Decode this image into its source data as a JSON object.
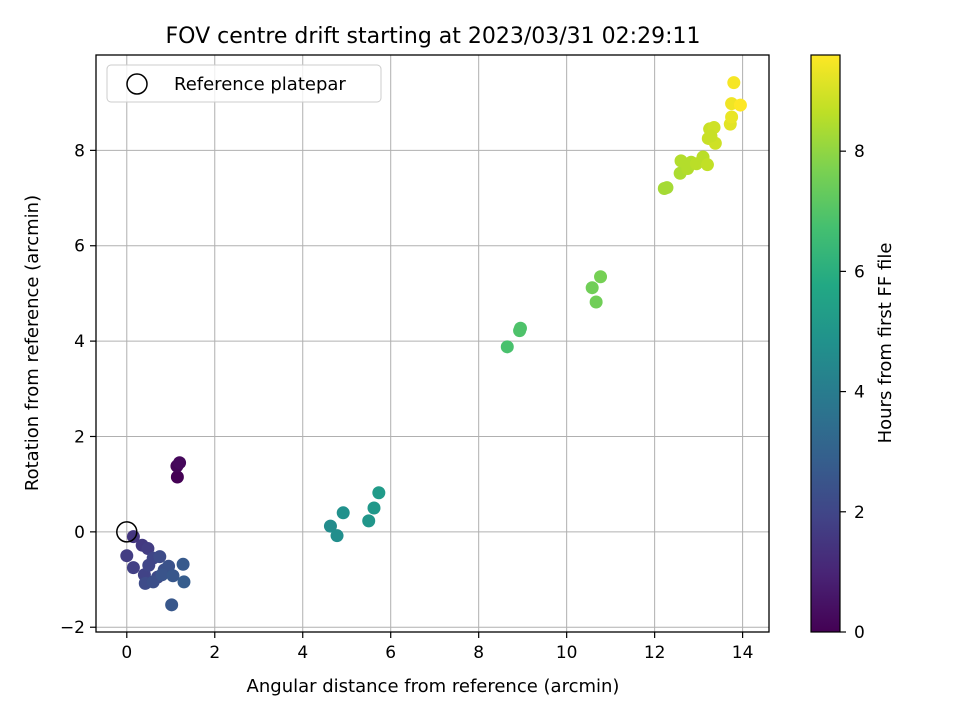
{
  "chart_data": {
    "type": "scatter",
    "title": "FOV centre drift starting at 2023/03/31 02:29:11",
    "xlabel": "Angular distance from reference (arcmin)",
    "ylabel": "Rotation from reference (arcmin)",
    "xlim": [
      -0.7,
      14.6
    ],
    "ylim": [
      -2.1,
      10.0
    ],
    "xticks": [
      0,
      2,
      4,
      6,
      8,
      10,
      12,
      14
    ],
    "yticks": [
      -2,
      0,
      2,
      4,
      6,
      8
    ],
    "grid": true,
    "legend": {
      "placement": "top-left",
      "entries": [
        "Reference platepar"
      ]
    },
    "reference_point": {
      "x": 0,
      "y": 0,
      "marker": "open-circle",
      "label": "Reference platepar"
    },
    "colorbar": {
      "label": "Hours from first FF file",
      "colormap": "viridis",
      "range": [
        0,
        9.6
      ],
      "ticks": [
        0,
        2,
        4,
        6,
        8
      ]
    },
    "points": [
      {
        "x": 1.15,
        "y": 1.15,
        "c": 0.0
      },
      {
        "x": 1.14,
        "y": 1.38,
        "c": 0.1
      },
      {
        "x": 1.2,
        "y": 1.45,
        "c": 0.2
      },
      {
        "x": 0.15,
        "y": -0.1,
        "c": 1.5
      },
      {
        "x": 0.0,
        "y": -0.5,
        "c": 1.7
      },
      {
        "x": 0.15,
        "y": -0.75,
        "c": 1.8
      },
      {
        "x": 0.35,
        "y": -0.28,
        "c": 1.6
      },
      {
        "x": 0.48,
        "y": -0.35,
        "c": 1.7
      },
      {
        "x": 0.4,
        "y": -0.9,
        "c": 1.9
      },
      {
        "x": 0.5,
        "y": -0.7,
        "c": 2.0
      },
      {
        "x": 0.6,
        "y": -0.55,
        "c": 2.0
      },
      {
        "x": 0.75,
        "y": -0.52,
        "c": 2.2
      },
      {
        "x": 0.7,
        "y": -0.95,
        "c": 2.1
      },
      {
        "x": 0.85,
        "y": -0.8,
        "c": 2.3
      },
      {
        "x": 0.95,
        "y": -0.72,
        "c": 2.4
      },
      {
        "x": 0.42,
        "y": -1.08,
        "c": 2.2
      },
      {
        "x": 0.6,
        "y": -1.05,
        "c": 2.3
      },
      {
        "x": 0.8,
        "y": -0.9,
        "c": 2.5
      },
      {
        "x": 1.05,
        "y": -0.92,
        "c": 2.6
      },
      {
        "x": 1.28,
        "y": -0.68,
        "c": 2.7
      },
      {
        "x": 1.3,
        "y": -1.05,
        "c": 2.8
      },
      {
        "x": 1.02,
        "y": -1.53,
        "c": 2.6
      },
      {
        "x": 4.63,
        "y": 0.12,
        "c": 4.6
      },
      {
        "x": 4.78,
        "y": -0.08,
        "c": 4.7
      },
      {
        "x": 4.92,
        "y": 0.4,
        "c": 4.8
      },
      {
        "x": 5.5,
        "y": 0.23,
        "c": 5.0
      },
      {
        "x": 5.62,
        "y": 0.5,
        "c": 5.1
      },
      {
        "x": 5.73,
        "y": 0.82,
        "c": 5.2
      },
      {
        "x": 8.65,
        "y": 3.88,
        "c": 6.8
      },
      {
        "x": 8.93,
        "y": 4.22,
        "c": 6.9
      },
      {
        "x": 8.95,
        "y": 4.27,
        "c": 6.9
      },
      {
        "x": 10.58,
        "y": 5.12,
        "c": 7.5
      },
      {
        "x": 10.77,
        "y": 5.35,
        "c": 7.6
      },
      {
        "x": 10.67,
        "y": 4.82,
        "c": 7.5
      },
      {
        "x": 12.22,
        "y": 7.2,
        "c": 8.3
      },
      {
        "x": 12.28,
        "y": 7.22,
        "c": 8.3
      },
      {
        "x": 12.58,
        "y": 7.52,
        "c": 8.4
      },
      {
        "x": 12.6,
        "y": 7.78,
        "c": 8.5
      },
      {
        "x": 12.75,
        "y": 7.62,
        "c": 8.5
      },
      {
        "x": 12.83,
        "y": 7.75,
        "c": 8.5
      },
      {
        "x": 12.95,
        "y": 7.72,
        "c": 8.6
      },
      {
        "x": 13.1,
        "y": 7.86,
        "c": 8.6
      },
      {
        "x": 13.2,
        "y": 7.7,
        "c": 8.7
      },
      {
        "x": 13.22,
        "y": 8.25,
        "c": 8.8
      },
      {
        "x": 13.25,
        "y": 8.45,
        "c": 8.8
      },
      {
        "x": 13.35,
        "y": 8.48,
        "c": 8.9
      },
      {
        "x": 13.38,
        "y": 8.15,
        "c": 8.9
      },
      {
        "x": 13.28,
        "y": 8.3,
        "c": 8.8
      },
      {
        "x": 13.72,
        "y": 8.55,
        "c": 9.2
      },
      {
        "x": 13.75,
        "y": 8.7,
        "c": 9.3
      },
      {
        "x": 13.75,
        "y": 8.98,
        "c": 9.4
      },
      {
        "x": 13.8,
        "y": 9.42,
        "c": 9.5
      },
      {
        "x": 13.95,
        "y": 8.95,
        "c": 9.6
      }
    ]
  }
}
